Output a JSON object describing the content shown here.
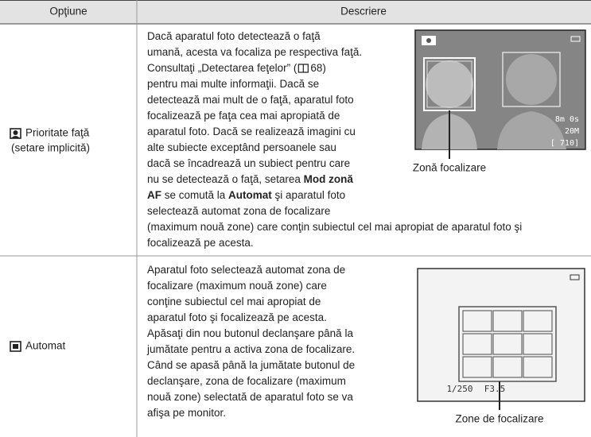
{
  "table": {
    "headers": [
      "Opţiune",
      "Descriere"
    ],
    "rows": [
      {
        "option": [
          "Prioritate faţă",
          "(setare implicită)"
        ],
        "description": [
          [
            "Dacă aparatul foto detectează o faţă"
          ],
          [
            "umană, acesta va focaliza pe respectiva faţă."
          ],
          [
            "Consultaţi „Detectarea feţelor” (",
            "68)"
          ],
          [
            "pentru mai multe informaţii. Dacă se"
          ],
          [
            "detectează mai mult de o faţă, aparatul foto"
          ],
          [
            "focalizează pe faţa cea mai apropiată de"
          ],
          [
            "aparatul foto. Dacă se realizează imagini cu"
          ],
          [
            "alte subiecte exceptând persoanele sau"
          ],
          [
            "dacă se încadrează un subiect pentru care"
          ],
          [
            "nu se detectează o faţă, setarea ",
            {
              "text": "Mod zonă",
              "bold": true
            }
          ],
          [
            {
              "text": "AF",
              "bold": true
            },
            " se comută la ",
            {
              "text": "Automat",
              "bold": true
            },
            " şi aparatul foto"
          ],
          [
            "selectează automat zona de focalizare"
          ],
          [
            "(maximum nouă zone) care conţin subiectul cel mai apropiat de aparatul foto şi"
          ],
          [
            "focalizează pe acesta."
          ]
        ],
        "figure": {
          "screen_text": [
            "8m 0s",
            "20M",
            "[ 710]"
          ],
          "caption": "Zonă focalizare"
        }
      },
      {
        "option": [
          "Automat"
        ],
        "description": [
          [
            "Aparatul foto selectează automat zona de"
          ],
          [
            "focalizare (maximum nouă zone) care"
          ],
          [
            "conţine subiectul cel mai apropiat de"
          ],
          [
            "aparatul foto şi focalizează pe acesta."
          ],
          [
            "Apăsaţi din nou butonul declanşare până la"
          ],
          [
            "jumătate pentru a activa zona de focalizare."
          ],
          [
            "Când se apasă până la jumătate butonul de"
          ],
          [
            "declanşare, zona de focalizare (maximum"
          ],
          [
            "nouă zone) selectată de aparatul foto se va"
          ],
          [
            "afişa pe monitor."
          ]
        ],
        "figure": {
          "screen_text": [
            "1/250",
            "F3.5"
          ],
          "caption": "Zone de focalizare"
        }
      }
    ]
  }
}
